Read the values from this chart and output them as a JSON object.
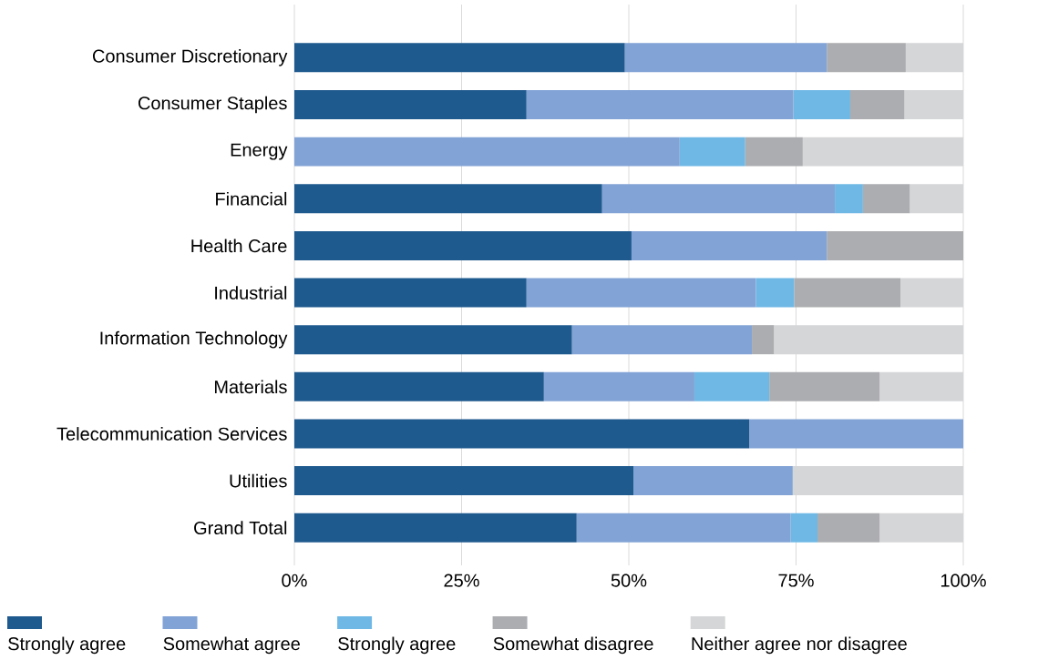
{
  "chart_data": {
    "type": "bar",
    "orientation": "horizontal",
    "stacked": true,
    "categories": [
      "Consumer Discretionary",
      "Consumer Staples",
      "Energy",
      "Financial",
      "Health Care",
      "Industrial",
      "Information Technology",
      "Materials",
      "Telecommunication Services",
      "Utilities",
      "Grand Total"
    ],
    "series": [
      {
        "name": "Strongly agree",
        "color": "#1f5a8f",
        "values": [
          49.4,
          34.7,
          0,
          46.0,
          50.4,
          34.7,
          41.5,
          37.3,
          68.0,
          50.7,
          42.2
        ]
      },
      {
        "name": "Somewhat agree",
        "color": "#82a3d6",
        "values": [
          30.2,
          39.9,
          57.6,
          34.8,
          29.2,
          34.3,
          26.9,
          22.5,
          32.0,
          23.8,
          32.0
        ]
      },
      {
        "name": "Strongly agree",
        "color": "#6fb8e5",
        "values": [
          0,
          8.5,
          9.8,
          4.2,
          0,
          5.7,
          0,
          11.2,
          0,
          0,
          4.0
        ]
      },
      {
        "name": "Somewhat disagree",
        "color": "#acadb0",
        "values": [
          11.8,
          8.1,
          8.6,
          7.0,
          20.4,
          15.9,
          3.3,
          16.5,
          0,
          0,
          9.3
        ]
      },
      {
        "name": "Neither agree nor disagree",
        "color": "#d5d6d8",
        "values": [
          8.6,
          8.8,
          24.0,
          8.0,
          0,
          9.4,
          28.3,
          12.5,
          0,
          25.5,
          12.5
        ]
      }
    ],
    "xlim": [
      0,
      100
    ],
    "xticks": [
      {
        "value": 0,
        "label": "0%"
      },
      {
        "value": 25,
        "label": "25%"
      },
      {
        "value": 50,
        "label": "50%"
      },
      {
        "value": 75,
        "label": "75%"
      },
      {
        "value": 100,
        "label": "100%"
      }
    ],
    "grid": "x",
    "legend": "bottom"
  }
}
